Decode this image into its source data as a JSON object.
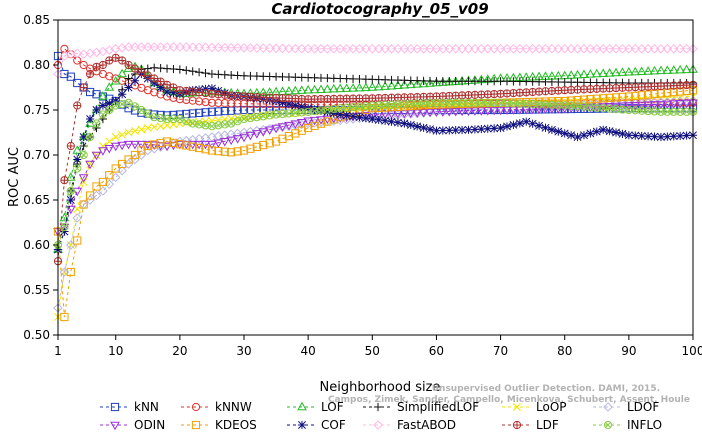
{
  "chart_data": {
    "type": "line",
    "title": "Cardiotocography_05_v09",
    "xlabel": "Neighborhood size",
    "ylabel": "ROC AUC",
    "xlim": [
      1,
      100
    ],
    "ylim": [
      0.5,
      0.85
    ],
    "xticks": [
      1,
      10,
      20,
      30,
      40,
      50,
      60,
      70,
      80,
      90,
      100
    ],
    "yticks": [
      0.5,
      0.55,
      0.6,
      0.65,
      0.7,
      0.75,
      0.8,
      0.85
    ],
    "ytick_labels": [
      "0.50",
      "0.55",
      "0.60",
      "0.65",
      "0.70",
      "0.75",
      "0.80",
      "0.85"
    ],
    "grid": false,
    "legend_position": "bottom",
    "series": [
      {
        "name": "kNN",
        "color": "#1f3fbf",
        "marker": "square",
        "points": [
          [
            1,
            0.81
          ],
          [
            2,
            0.79
          ],
          [
            3,
            0.787
          ],
          [
            4,
            0.78
          ],
          [
            5,
            0.775
          ],
          [
            6,
            0.77
          ],
          [
            8,
            0.765
          ],
          [
            10,
            0.76
          ],
          [
            12,
            0.752
          ],
          [
            14,
            0.747
          ],
          [
            16,
            0.745
          ],
          [
            18,
            0.744
          ],
          [
            20,
            0.745
          ],
          [
            25,
            0.748
          ],
          [
            30,
            0.75
          ],
          [
            40,
            0.75
          ],
          [
            50,
            0.75
          ],
          [
            60,
            0.75
          ],
          [
            70,
            0.75
          ],
          [
            80,
            0.751
          ],
          [
            90,
            0.752
          ],
          [
            100,
            0.752
          ]
        ]
      },
      {
        "name": "kNNW",
        "color": "#e0312b",
        "marker": "circle",
        "points": [
          [
            1,
            0.8
          ],
          [
            2,
            0.818
          ],
          [
            3,
            0.812
          ],
          [
            4,
            0.805
          ],
          [
            5,
            0.8
          ],
          [
            6,
            0.796
          ],
          [
            8,
            0.79
          ],
          [
            10,
            0.785
          ],
          [
            12,
            0.78
          ],
          [
            15,
            0.772
          ],
          [
            18,
            0.765
          ],
          [
            20,
            0.762
          ],
          [
            25,
            0.758
          ],
          [
            30,
            0.757
          ],
          [
            40,
            0.756
          ],
          [
            50,
            0.756
          ],
          [
            60,
            0.756
          ],
          [
            70,
            0.757
          ],
          [
            80,
            0.757
          ],
          [
            90,
            0.758
          ],
          [
            100,
            0.758
          ]
        ]
      },
      {
        "name": "LOF",
        "color": "#22bb22",
        "marker": "triangle-up",
        "points": [
          [
            1,
            0.595
          ],
          [
            2,
            0.63
          ],
          [
            3,
            0.675
          ],
          [
            4,
            0.705
          ],
          [
            5,
            0.72
          ],
          [
            6,
            0.735
          ],
          [
            7,
            0.75
          ],
          [
            8,
            0.765
          ],
          [
            9,
            0.775
          ],
          [
            10,
            0.782
          ],
          [
            11,
            0.79
          ],
          [
            12,
            0.796
          ],
          [
            13,
            0.798
          ],
          [
            14,
            0.795
          ],
          [
            15,
            0.788
          ],
          [
            16,
            0.78
          ],
          [
            18,
            0.772
          ],
          [
            20,
            0.768
          ],
          [
            25,
            0.77
          ],
          [
            30,
            0.768
          ],
          [
            35,
            0.77
          ],
          [
            40,
            0.772
          ],
          [
            50,
            0.775
          ],
          [
            60,
            0.78
          ],
          [
            70,
            0.785
          ],
          [
            80,
            0.788
          ],
          [
            90,
            0.792
          ],
          [
            100,
            0.795
          ]
        ]
      },
      {
        "name": "SimplifiedLOF",
        "color": "#111111",
        "marker": "plus",
        "points": [
          [
            1,
            0.595
          ],
          [
            2,
            0.615
          ],
          [
            3,
            0.66
          ],
          [
            4,
            0.69
          ],
          [
            5,
            0.71
          ],
          [
            6,
            0.72
          ],
          [
            8,
            0.74
          ],
          [
            10,
            0.76
          ],
          [
            12,
            0.785
          ],
          [
            14,
            0.795
          ],
          [
            16,
            0.797
          ],
          [
            18,
            0.796
          ],
          [
            20,
            0.795
          ],
          [
            25,
            0.79
          ],
          [
            30,
            0.788
          ],
          [
            40,
            0.786
          ],
          [
            50,
            0.784
          ],
          [
            60,
            0.782
          ],
          [
            70,
            0.782
          ],
          [
            80,
            0.781
          ],
          [
            90,
            0.78
          ],
          [
            100,
            0.78
          ]
        ]
      },
      {
        "name": "LoOP",
        "color": "#f2e600",
        "marker": "x",
        "points": [
          [
            1,
            0.52
          ],
          [
            2,
            0.57
          ],
          [
            3,
            0.6
          ],
          [
            4,
            0.64
          ],
          [
            5,
            0.67
          ],
          [
            6,
            0.69
          ],
          [
            8,
            0.71
          ],
          [
            10,
            0.72
          ],
          [
            12,
            0.725
          ],
          [
            15,
            0.73
          ],
          [
            20,
            0.735
          ],
          [
            25,
            0.738
          ],
          [
            30,
            0.742
          ],
          [
            40,
            0.748
          ],
          [
            50,
            0.752
          ],
          [
            60,
            0.755
          ],
          [
            70,
            0.757
          ],
          [
            80,
            0.76
          ],
          [
            90,
            0.762
          ],
          [
            100,
            0.765
          ]
        ]
      },
      {
        "name": "LDOF",
        "color": "#b8b8e0",
        "marker": "diamond",
        "points": [
          [
            1,
            0.53
          ],
          [
            2,
            0.57
          ],
          [
            3,
            0.6
          ],
          [
            4,
            0.63
          ],
          [
            5,
            0.645
          ],
          [
            6,
            0.65
          ],
          [
            8,
            0.66
          ],
          [
            10,
            0.675
          ],
          [
            12,
            0.69
          ],
          [
            15,
            0.705
          ],
          [
            20,
            0.715
          ],
          [
            25,
            0.72
          ],
          [
            30,
            0.725
          ],
          [
            40,
            0.735
          ],
          [
            50,
            0.742
          ],
          [
            60,
            0.748
          ],
          [
            70,
            0.752
          ],
          [
            80,
            0.755
          ],
          [
            90,
            0.757
          ],
          [
            100,
            0.76
          ]
        ]
      },
      {
        "name": "ODIN",
        "color": "#9b30d9",
        "marker": "triangle-down",
        "points": [
          [
            1,
            0.615
          ],
          [
            2,
            0.62
          ],
          [
            3,
            0.64
          ],
          [
            4,
            0.66
          ],
          [
            5,
            0.675
          ],
          [
            6,
            0.69
          ],
          [
            7,
            0.7
          ],
          [
            8,
            0.705
          ],
          [
            10,
            0.71
          ],
          [
            12,
            0.712
          ],
          [
            15,
            0.712
          ],
          [
            18,
            0.71
          ],
          [
            20,
            0.712
          ],
          [
            25,
            0.712
          ],
          [
            30,
            0.72
          ],
          [
            35,
            0.73
          ],
          [
            40,
            0.738
          ],
          [
            50,
            0.745
          ],
          [
            60,
            0.748
          ],
          [
            70,
            0.75
          ],
          [
            80,
            0.752
          ],
          [
            90,
            0.755
          ],
          [
            100,
            0.758
          ]
        ]
      },
      {
        "name": "KDEOS",
        "color": "#f2a000",
        "marker": "square",
        "points": [
          [
            1,
            0.615
          ],
          [
            2,
            0.52
          ],
          [
            3,
            0.57
          ],
          [
            4,
            0.605
          ],
          [
            5,
            0.645
          ],
          [
            6,
            0.655
          ],
          [
            7,
            0.665
          ],
          [
            8,
            0.67
          ],
          [
            10,
            0.685
          ],
          [
            12,
            0.695
          ],
          [
            15,
            0.71
          ],
          [
            18,
            0.715
          ],
          [
            20,
            0.712
          ],
          [
            25,
            0.705
          ],
          [
            28,
            0.703
          ],
          [
            30,
            0.705
          ],
          [
            35,
            0.715
          ],
          [
            40,
            0.73
          ],
          [
            45,
            0.742
          ],
          [
            50,
            0.752
          ],
          [
            60,
            0.756
          ],
          [
            70,
            0.758
          ],
          [
            80,
            0.76
          ],
          [
            90,
            0.765
          ],
          [
            100,
            0.772
          ]
        ]
      },
      {
        "name": "COF",
        "color": "#101080",
        "marker": "star",
        "points": [
          [
            1,
            0.595
          ],
          [
            2,
            0.615
          ],
          [
            3,
            0.65
          ],
          [
            4,
            0.695
          ],
          [
            5,
            0.72
          ],
          [
            6,
            0.74
          ],
          [
            7,
            0.75
          ],
          [
            8,
            0.755
          ],
          [
            10,
            0.76
          ],
          [
            12,
            0.775
          ],
          [
            14,
            0.79
          ],
          [
            16,
            0.78
          ],
          [
            18,
            0.77
          ],
          [
            20,
            0.768
          ],
          [
            22,
            0.772
          ],
          [
            25,
            0.774
          ],
          [
            28,
            0.766
          ],
          [
            30,
            0.765
          ],
          [
            35,
            0.76
          ],
          [
            40,
            0.752
          ],
          [
            45,
            0.745
          ],
          [
            50,
            0.74
          ],
          [
            55,
            0.735
          ],
          [
            60,
            0.727
          ],
          [
            65,
            0.728
          ],
          [
            70,
            0.73
          ],
          [
            74,
            0.737
          ],
          [
            78,
            0.728
          ],
          [
            82,
            0.72
          ],
          [
            86,
            0.728
          ],
          [
            90,
            0.722
          ],
          [
            95,
            0.72
          ],
          [
            100,
            0.722
          ]
        ]
      },
      {
        "name": "FastABOD",
        "color": "#ffb8e8",
        "marker": "diamond",
        "points": [
          [
            1,
            0.79
          ],
          [
            2,
            0.81
          ],
          [
            3,
            0.812
          ],
          [
            4,
            0.813
          ],
          [
            5,
            0.812
          ],
          [
            6,
            0.813
          ],
          [
            8,
            0.815
          ],
          [
            10,
            0.818
          ],
          [
            12,
            0.82
          ],
          [
            15,
            0.82
          ],
          [
            20,
            0.82
          ],
          [
            30,
            0.819
          ],
          [
            40,
            0.818
          ],
          [
            50,
            0.818
          ],
          [
            60,
            0.818
          ],
          [
            70,
            0.818
          ],
          [
            80,
            0.818
          ],
          [
            90,
            0.818
          ],
          [
            100,
            0.818
          ]
        ]
      },
      {
        "name": "LDF",
        "color": "#b03030",
        "marker": "circle-plus",
        "points": [
          [
            1,
            0.582
          ],
          [
            2,
            0.672
          ],
          [
            3,
            0.71
          ],
          [
            4,
            0.755
          ],
          [
            5,
            0.775
          ],
          [
            6,
            0.79
          ],
          [
            7,
            0.798
          ],
          [
            8,
            0.8
          ],
          [
            9,
            0.805
          ],
          [
            10,
            0.808
          ],
          [
            11,
            0.805
          ],
          [
            12,
            0.8
          ],
          [
            14,
            0.792
          ],
          [
            16,
            0.785
          ],
          [
            18,
            0.778
          ],
          [
            20,
            0.772
          ],
          [
            25,
            0.768
          ],
          [
            30,
            0.765
          ],
          [
            40,
            0.762
          ],
          [
            50,
            0.763
          ],
          [
            60,
            0.765
          ],
          [
            70,
            0.768
          ],
          [
            80,
            0.772
          ],
          [
            90,
            0.775
          ],
          [
            100,
            0.778
          ]
        ]
      },
      {
        "name": "INFLO",
        "color": "#88cc44",
        "marker": "circle-x",
        "points": [
          [
            1,
            0.6
          ],
          [
            2,
            0.62
          ],
          [
            3,
            0.66
          ],
          [
            4,
            0.685
          ],
          [
            5,
            0.7
          ],
          [
            6,
            0.72
          ],
          [
            7,
            0.735
          ],
          [
            8,
            0.745
          ],
          [
            10,
            0.755
          ],
          [
            12,
            0.758
          ],
          [
            14,
            0.75
          ],
          [
            16,
            0.742
          ],
          [
            18,
            0.74
          ],
          [
            20,
            0.74
          ],
          [
            22,
            0.735
          ],
          [
            25,
            0.732
          ],
          [
            28,
            0.735
          ],
          [
            30,
            0.74
          ],
          [
            35,
            0.745
          ],
          [
            40,
            0.748
          ],
          [
            45,
            0.752
          ],
          [
            50,
            0.755
          ],
          [
            60,
            0.758
          ],
          [
            70,
            0.758
          ],
          [
            80,
            0.755
          ],
          [
            90,
            0.75
          ],
          [
            95,
            0.748
          ],
          [
            100,
            0.748
          ]
        ]
      }
    ],
    "legend_rows": [
      [
        "kNN",
        "kNNW",
        "LOF",
        "SimplifiedLOF",
        "LoOP",
        "LDOF"
      ],
      [
        "ODIN",
        "KDEOS",
        "COF",
        "FastABOD",
        "LDF",
        "INFLO"
      ]
    ],
    "watermark_lines": [
      "Unsupervised Outlier Detection. DAMI, 2015.",
      "Campos, Zimek, Sander, Campello, Micenkova, Schubert, Assent, Houle"
    ]
  }
}
